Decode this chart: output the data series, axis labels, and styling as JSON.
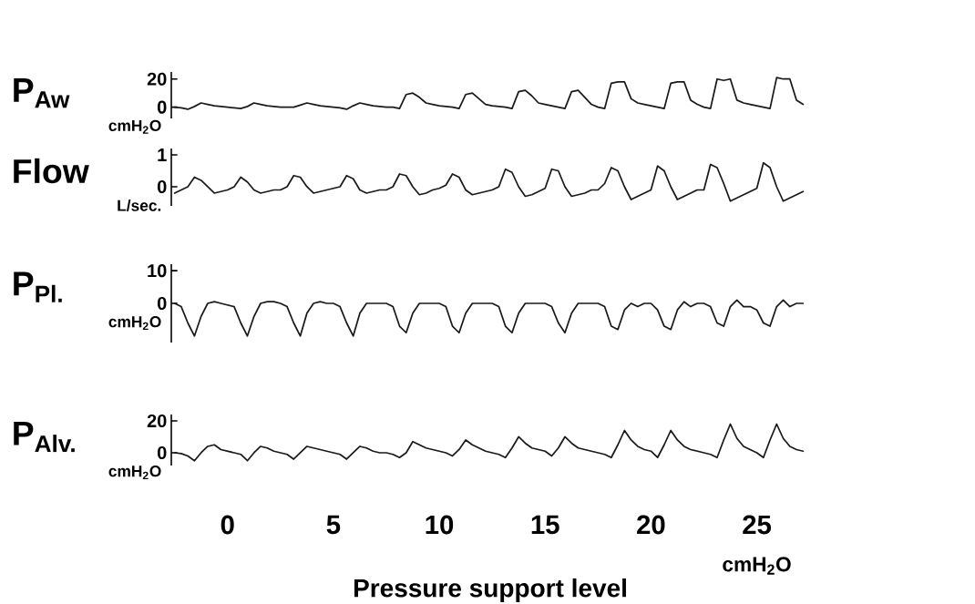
{
  "chart_data": [
    {
      "type": "line",
      "ylabel": "P$_{Aw}$",
      "annotations": [
        "cmH$_{2}$O"
      ],
      "ylim": [
        -8,
        25
      ],
      "yticks": [
        0,
        20
      ],
      "categories": [
        null,
        null,
        null,
        null,
        null,
        null,
        null,
        null,
        null,
        null,
        null,
        null,
        null,
        null,
        null,
        null,
        null,
        null,
        null,
        null,
        null,
        null,
        null,
        null,
        null,
        null,
        null,
        null,
        null,
        null,
        null,
        null,
        null,
        null,
        null,
        null,
        null,
        null,
        null,
        null,
        null,
        null,
        null,
        null,
        null,
        null,
        null,
        null,
        null,
        null,
        null,
        null,
        null,
        null,
        null,
        null,
        null,
        null,
        null,
        null,
        null,
        null,
        null,
        null,
        null,
        null,
        null,
        null,
        null,
        null,
        null,
        null,
        null,
        null,
        null,
        null,
        null,
        null,
        null,
        null,
        null,
        null,
        null,
        null,
        null,
        null,
        null,
        null,
        null,
        null,
        null,
        null,
        null,
        null,
        null,
        null
      ],
      "series": [
        {
          "color": "#1a1a1a",
          "values": [
            0,
            -0.5,
            -1.5,
            0.5,
            3,
            2,
            1,
            0.5,
            0,
            -0.5,
            -1,
            0.5,
            3,
            2,
            1,
            0.5,
            0,
            0,
            0,
            1.5,
            3,
            2,
            1,
            0.5,
            0,
            -0.5,
            -1.5,
            1,
            3,
            2,
            1,
            0.5,
            0,
            0,
            -1,
            9,
            10,
            7,
            3,
            2,
            1,
            0.5,
            0,
            -1,
            9,
            10,
            6,
            2,
            1,
            0.5,
            0,
            -1,
            11,
            12,
            8,
            3,
            2,
            1,
            0,
            -1,
            11,
            12,
            7,
            2,
            0,
            -1,
            17,
            18,
            18,
            6,
            3,
            2,
            1,
            0,
            -1,
            17,
            18,
            18,
            5,
            2,
            0,
            -1,
            20,
            19,
            20,
            5,
            3,
            2,
            1,
            0,
            -1,
            21,
            20,
            20,
            5,
            2
          ]
        }
      ]
    },
    {
      "type": "line",
      "ylabel": "Flow",
      "annotations": [
        "L/sec."
      ],
      "ylim": [
        -0.6,
        1.2
      ],
      "yticks": [
        0,
        1
      ],
      "categories": [
        null,
        null,
        null,
        null,
        null,
        null,
        null,
        null,
        null,
        null,
        null,
        null,
        null,
        null,
        null,
        null,
        null,
        null,
        null,
        null,
        null,
        null,
        null,
        null,
        null,
        null,
        null,
        null,
        null,
        null,
        null,
        null,
        null,
        null,
        null,
        null,
        null,
        null,
        null,
        null,
        null,
        null,
        null,
        null,
        null,
        null,
        null,
        null,
        null,
        null,
        null,
        null,
        null,
        null,
        null,
        null,
        null,
        null,
        null,
        null,
        null,
        null,
        null,
        null,
        null,
        null,
        null,
        null,
        null,
        null,
        null,
        null,
        null,
        null,
        null,
        null,
        null,
        null,
        null,
        null,
        null,
        null,
        null,
        null,
        null,
        null,
        null,
        null,
        null,
        null,
        null,
        null,
        null,
        null,
        null,
        null
      ],
      "series": [
        {
          "color": "#1a1a1a",
          "values": [
            -0.2,
            -0.1,
            0,
            0.3,
            0.2,
            0,
            -0.2,
            -0.15,
            -0.1,
            0,
            0.3,
            0.15,
            -0.1,
            -0.2,
            -0.15,
            -0.1,
            -0.1,
            0,
            0.35,
            0.3,
            0,
            -0.2,
            -0.15,
            -0.1,
            -0.05,
            0,
            0.35,
            0.25,
            -0.1,
            -0.2,
            -0.15,
            -0.1,
            -0.1,
            0,
            0.4,
            0.35,
            0,
            -0.25,
            -0.2,
            -0.1,
            -0.05,
            0.05,
            0.4,
            0.3,
            -0.1,
            -0.25,
            -0.2,
            -0.15,
            -0.1,
            0,
            0.55,
            0.45,
            0,
            -0.3,
            -0.25,
            -0.15,
            -0.05,
            0.55,
            0.5,
            0,
            -0.3,
            -0.25,
            -0.2,
            -0.1,
            -0.1,
            0.1,
            0.6,
            0.5,
            0,
            -0.4,
            -0.3,
            -0.2,
            -0.1,
            0.65,
            0.5,
            0,
            -0.4,
            -0.3,
            -0.2,
            -0.1,
            -0.1,
            0.7,
            0.6,
            0.1,
            -0.45,
            -0.35,
            -0.25,
            -0.15,
            -0.05,
            0.75,
            0.6,
            0,
            -0.45,
            -0.35,
            -0.25,
            -0.15
          ]
        }
      ]
    },
    {
      "type": "line",
      "ylabel": "P$_{Pl.}$",
      "annotations": [
        "cmH$_{2}$O"
      ],
      "ylim": [
        -12,
        12
      ],
      "yticks": [
        0,
        10
      ],
      "categories": [
        null,
        null,
        null,
        null,
        null,
        null,
        null,
        null,
        null,
        null,
        null,
        null,
        null,
        null,
        null,
        null,
        null,
        null,
        null,
        null,
        null,
        null,
        null,
        null,
        null,
        null,
        null,
        null,
        null,
        null,
        null,
        null,
        null,
        null,
        null,
        null,
        null,
        null,
        null,
        null,
        null,
        null,
        null,
        null,
        null,
        null,
        null,
        null,
        null,
        null,
        null,
        null,
        null,
        null,
        null,
        null,
        null,
        null,
        null,
        null,
        null,
        null,
        null,
        null,
        null,
        null,
        null,
        null,
        null,
        null,
        null,
        null,
        null,
        null,
        null,
        null,
        null,
        null,
        null,
        null,
        null,
        null,
        null,
        null,
        null,
        null,
        null,
        null,
        null,
        null,
        null,
        null,
        null,
        null,
        null,
        null
      ],
      "series": [
        {
          "color": "#1a1a1a",
          "values": [
            0,
            -1,
            -6,
            -10,
            -4,
            0,
            0.5,
            0,
            -0.5,
            -1,
            -6,
            -10,
            -4,
            0,
            0.5,
            0.5,
            0,
            -1,
            -6,
            -10,
            -3,
            0,
            0.5,
            0,
            0,
            -1,
            -6,
            -10,
            -3,
            0,
            0,
            0,
            0,
            -1,
            -7,
            -9,
            -3,
            0,
            0,
            0,
            0,
            -1,
            -7,
            -9,
            -3,
            0,
            0,
            0,
            0,
            -1,
            -7,
            -9,
            -3,
            0,
            0,
            0,
            0,
            -1,
            -6,
            -9,
            -3,
            0,
            0,
            0,
            0,
            -1,
            -7,
            -8,
            -2,
            0,
            -1,
            0,
            0,
            -2,
            -7,
            -8,
            -2,
            0.5,
            -1,
            0,
            0,
            -1,
            -6,
            -7,
            -1,
            1,
            -1,
            -1,
            -2,
            -6,
            -7,
            -1,
            1,
            -1,
            0,
            0
          ]
        }
      ]
    },
    {
      "type": "line",
      "ylabel": "P$_{Alv.}$",
      "xlabel": "Pressure support level",
      "annotations": [
        "cmH$_{2}$O",
        "cmH$_{2}$O"
      ],
      "ylim": [
        -8,
        24
      ],
      "yticks": [
        0,
        20
      ],
      "categories": [
        null,
        null,
        null,
        null,
        null,
        null,
        null,
        null,
        "0",
        null,
        null,
        null,
        null,
        null,
        null,
        null,
        null,
        null,
        null,
        null,
        null,
        null,
        null,
        null,
        "5",
        null,
        null,
        null,
        null,
        null,
        null,
        null,
        null,
        null,
        null,
        null,
        null,
        null,
        null,
        null,
        "10",
        null,
        null,
        null,
        null,
        null,
        null,
        null,
        null,
        null,
        null,
        null,
        null,
        null,
        null,
        null,
        "15",
        null,
        null,
        null,
        null,
        null,
        null,
        null,
        null,
        null,
        null,
        null,
        null,
        null,
        null,
        null,
        "20",
        null,
        null,
        null,
        null,
        null,
        null,
        null,
        null,
        null,
        null,
        null,
        null,
        null,
        null,
        null,
        "25",
        null,
        null,
        null,
        null,
        null,
        null,
        null
      ],
      "series": [
        {
          "color": "#1a1a1a",
          "values": [
            0,
            -0.5,
            -2,
            -5,
            0,
            4,
            5,
            2,
            1,
            0,
            -1,
            -5,
            0,
            4,
            3,
            1,
            0,
            -1,
            -4,
            0,
            4,
            3,
            2,
            1,
            0,
            -1,
            -4,
            0,
            4,
            3,
            1,
            0,
            0,
            -1,
            -3,
            0,
            7,
            5,
            3,
            2,
            1,
            0,
            -2,
            2,
            8,
            5,
            3,
            1,
            0,
            -1,
            -3,
            3,
            10,
            6,
            3,
            2,
            1,
            -2,
            3,
            10,
            6,
            3,
            2,
            1,
            0,
            -1,
            -3,
            5,
            14,
            8,
            4,
            2,
            1,
            -3,
            5,
            14,
            8,
            4,
            2,
            1,
            0,
            -1,
            -3,
            8,
            18,
            9,
            4,
            2,
            0,
            -3,
            8,
            18,
            9,
            4,
            2,
            1
          ]
        }
      ]
    }
  ]
}
